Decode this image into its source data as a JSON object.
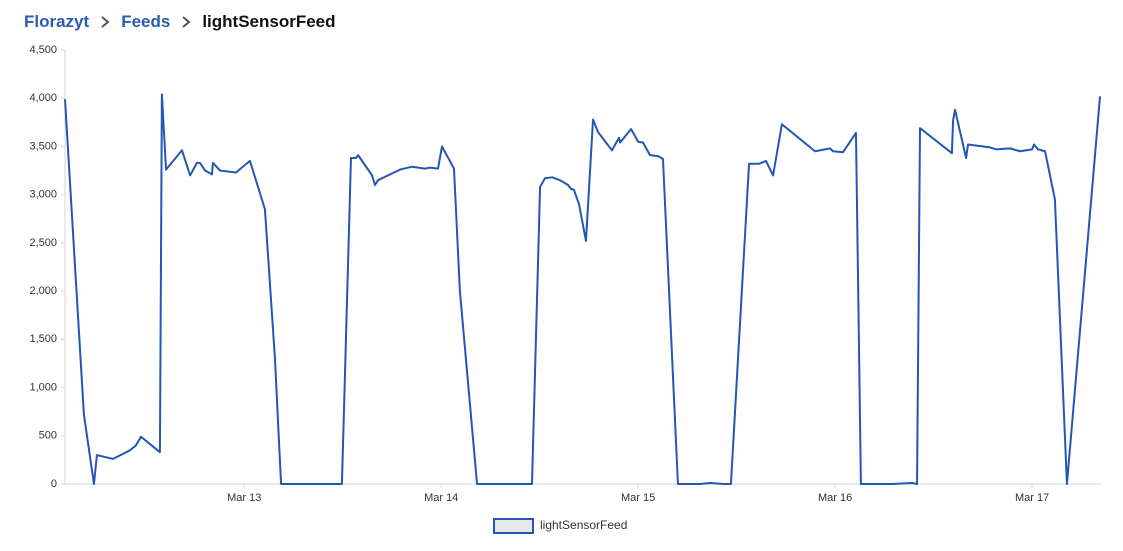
{
  "breadcrumb": [
    "Florazyt",
    "Feeds",
    "lightSensorFeed"
  ],
  "chart_data": {
    "type": "line",
    "x": [
      12.09,
      12.186,
      12.237,
      12.252,
      12.334,
      12.42,
      12.45,
      12.476,
      12.572,
      12.582,
      12.603,
      12.684,
      12.725,
      12.76,
      12.775,
      12.801,
      12.836,
      12.841,
      12.877,
      12.958,
      13.029,
      13.105,
      13.156,
      13.187,
      13.496,
      13.542,
      13.567,
      13.578,
      13.649,
      13.664,
      13.679,
      13.791,
      13.852,
      13.918,
      13.943,
      13.984,
      14.004,
      14.065,
      14.095,
      14.182,
      14.461,
      14.502,
      14.527,
      14.563,
      14.603,
      14.644,
      14.659,
      14.674,
      14.7,
      14.735,
      14.771,
      14.796,
      14.867,
      14.903,
      14.908,
      14.964,
      14.989,
      14.999,
      15.025,
      15.06,
      15.101,
      15.126,
      15.202,
      15.314,
      15.365,
      15.436,
      15.471,
      15.563,
      15.614,
      15.649,
      15.685,
      15.73,
      15.898,
      15.974,
      15.989,
      16.04,
      16.106,
      16.131,
      16.289,
      16.39,
      16.416,
      16.431,
      16.593,
      16.599,
      16.609,
      16.665,
      16.675,
      16.786,
      16.817,
      16.888,
      16.939,
      17.0,
      17.01,
      17.03,
      17.066,
      17.116,
      17.177,
      17.345
    ],
    "series": [
      {
        "name": "lightSensorFeed",
        "color": "#2456b4",
        "values": [
          3990,
          720,
          0,
          300,
          260,
          350,
          400,
          490,
          330,
          4040,
          3260,
          3460,
          3200,
          3330,
          3330,
          3250,
          3210,
          3330,
          3250,
          3230,
          3350,
          2850,
          1300,
          0,
          0,
          3380,
          3380,
          3410,
          3200,
          3100,
          3150,
          3260,
          3290,
          3270,
          3280,
          3270,
          3500,
          3270,
          2000,
          0,
          0,
          3080,
          3170,
          3180,
          3150,
          3100,
          3060,
          3050,
          2900,
          2520,
          3780,
          3650,
          3460,
          3590,
          3540,
          3680,
          3590,
          3550,
          3540,
          3410,
          3400,
          3370,
          0,
          0,
          10,
          0,
          0,
          3320,
          3320,
          3350,
          3200,
          3730,
          3450,
          3480,
          3450,
          3440,
          3640,
          0,
          0,
          10,
          0,
          3690,
          3430,
          3770,
          3880,
          3380,
          3520,
          3490,
          3470,
          3480,
          3450,
          3470,
          3520,
          3470,
          3450,
          2950,
          0,
          4020
        ]
      }
    ],
    "xlim": [
      12.09,
      17.35
    ],
    "xticks": [
      {
        "value": 13,
        "label": "Mar 13"
      },
      {
        "value": 14,
        "label": "Mar 14"
      },
      {
        "value": 15,
        "label": "Mar 15"
      },
      {
        "value": 16,
        "label": "Mar 16"
      },
      {
        "value": 17,
        "label": "Mar 17"
      }
    ],
    "ylim": [
      0,
      4500
    ],
    "yticks": [
      0,
      500,
      {
        "value": 1000,
        "label": "1,000"
      },
      {
        "value": 1500,
        "label": "1,500"
      },
      {
        "value": 2000,
        "label": "2,000"
      },
      {
        "value": 2500,
        "label": "2,500"
      },
      {
        "value": 3000,
        "label": "3,000"
      },
      {
        "value": 3500,
        "label": "3,500"
      },
      {
        "value": 4000,
        "label": "4,000"
      },
      {
        "value": 4500,
        "label": "4,500"
      }
    ],
    "grid": false
  }
}
